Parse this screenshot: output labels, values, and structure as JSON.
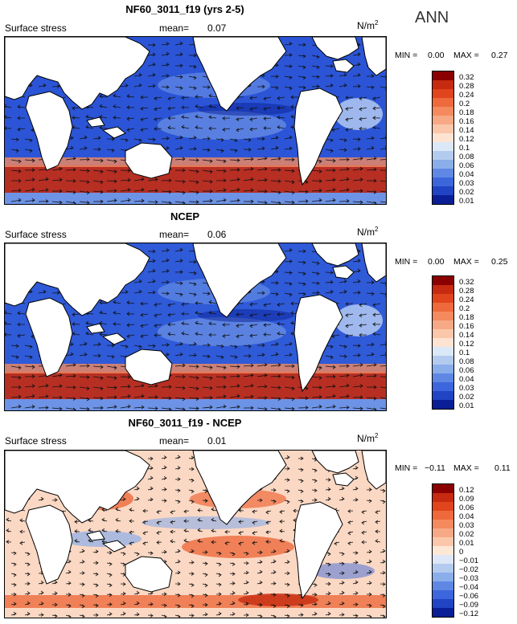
{
  "season": "ANN",
  "panels": [
    {
      "title": "NF60_3011_f19 (yrs 2-5)",
      "subtitle": "Surface stress",
      "mean_label": "mean=",
      "mean": "0.07",
      "units": "N/m",
      "units_sup": "2",
      "min_label": "MIN =",
      "min": "0.00",
      "max_label": "MAX =",
      "max": "0.27",
      "levels": [
        "0.32",
        "0.28",
        "0.24",
        "0.2",
        "0.18",
        "0.16",
        "0.14",
        "0.12",
        "0.1",
        "0.08",
        "0.06",
        "0.04",
        "0.03",
        "0.02",
        "0.01"
      ],
      "colors": [
        "#8b0000",
        "#c62a10",
        "#e0451e",
        "#ee6a3c",
        "#f48a5e",
        "#f7a985",
        "#fbc7ab",
        "#fde4d2",
        "#dbe8f7",
        "#b3cbee",
        "#8aaeea",
        "#5f88e4",
        "#3c67dc",
        "#2044c4",
        "#0a1f96"
      ]
    },
    {
      "title": "NCEP",
      "subtitle": "Surface stress",
      "mean_label": "mean=",
      "mean": "0.06",
      "units": "N/m",
      "units_sup": "2",
      "min_label": "MIN =",
      "min": "0.00",
      "max_label": "MAX =",
      "max": "0.25",
      "levels": [
        "0.32",
        "0.28",
        "0.24",
        "0.2",
        "0.18",
        "0.16",
        "0.14",
        "0.12",
        "0.1",
        "0.08",
        "0.06",
        "0.04",
        "0.03",
        "0.02",
        "0.01"
      ],
      "colors": [
        "#8b0000",
        "#c62a10",
        "#e0451e",
        "#ee6a3c",
        "#f48a5e",
        "#f7a985",
        "#fbc7ab",
        "#fde4d2",
        "#dbe8f7",
        "#b3cbee",
        "#8aaeea",
        "#5f88e4",
        "#3c67dc",
        "#2044c4",
        "#0a1f96"
      ]
    },
    {
      "title": "NF60_3011_f19 - NCEP",
      "subtitle": "Surface stress",
      "mean_label": "mean=",
      "mean": "0.01",
      "units": "N/m",
      "units_sup": "2",
      "min_label": "MIN =",
      "min": "−0.11",
      "max_label": "MAX =",
      "max": "0.11",
      "levels": [
        "0.12",
        "0.09",
        "0.06",
        "0.04",
        "0.03",
        "0.02",
        "0.01",
        "0",
        "−0.01",
        "−0.02",
        "−0.03",
        "−0.04",
        "−0.06",
        "−0.09",
        "−0.12"
      ],
      "colors": [
        "#8b0000",
        "#c62a10",
        "#e0451e",
        "#ee6a3c",
        "#f48a5e",
        "#f7a985",
        "#fbc7ab",
        "#fde8d6",
        "#dde7f7",
        "#b3cbee",
        "#8aaeea",
        "#5f88e4",
        "#3c67dc",
        "#2044c4",
        "#0a1f96"
      ]
    }
  ],
  "chart_data": [
    {
      "type": "heatmap",
      "title": "NF60_3011_f19 (yrs 2-5)",
      "variable": "Surface stress",
      "units": "N/m2",
      "mean": 0.07,
      "min": 0.0,
      "max": 0.27,
      "contour_levels": [
        0.01,
        0.02,
        0.03,
        0.04,
        0.06,
        0.08,
        0.1,
        0.12,
        0.14,
        0.16,
        0.18,
        0.2,
        0.24,
        0.28,
        0.32
      ],
      "overlay": "wind stress vectors"
    },
    {
      "type": "heatmap",
      "title": "NCEP",
      "variable": "Surface stress",
      "units": "N/m2",
      "mean": 0.06,
      "min": 0.0,
      "max": 0.25,
      "contour_levels": [
        0.01,
        0.02,
        0.03,
        0.04,
        0.06,
        0.08,
        0.1,
        0.12,
        0.14,
        0.16,
        0.18,
        0.2,
        0.24,
        0.28,
        0.32
      ],
      "overlay": "wind stress vectors"
    },
    {
      "type": "heatmap",
      "title": "NF60_3011_f19 - NCEP",
      "variable": "Surface stress",
      "units": "N/m2",
      "mean": 0.01,
      "min": -0.11,
      "max": 0.11,
      "contour_levels": [
        -0.12,
        -0.09,
        -0.06,
        -0.04,
        -0.03,
        -0.02,
        -0.01,
        0,
        0.01,
        0.02,
        0.03,
        0.04,
        0.06,
        0.09,
        0.12
      ],
      "overlay": "wind stress difference vectors"
    }
  ]
}
